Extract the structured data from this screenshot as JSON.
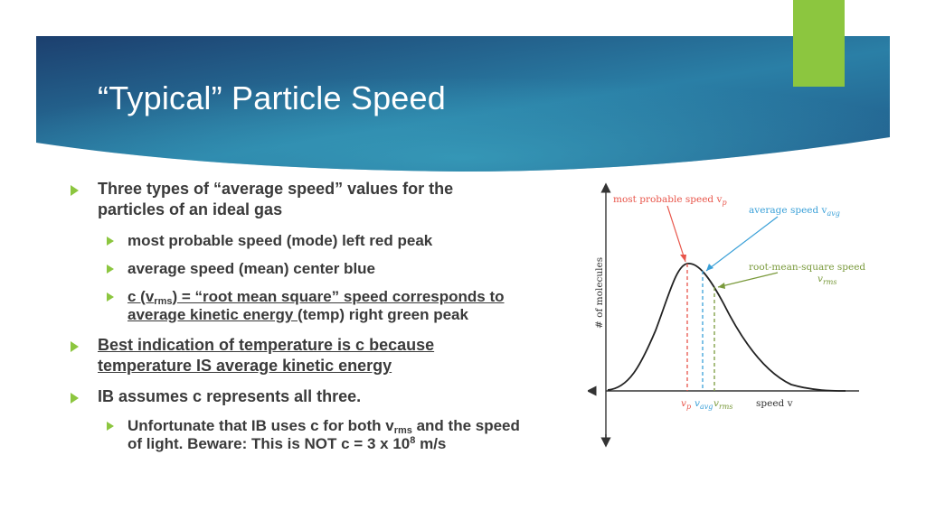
{
  "slide": {
    "title": "“Typical” Particle Speed",
    "colors": {
      "banner_dark": "#1c3f6e",
      "banner_light": "#2f8fb0",
      "accent_green": "#8cc63f",
      "text": "#3a3a3a"
    }
  },
  "bullets": {
    "b1_line1": "Three types of “average speed” values for the",
    "b1_line2": "particles of an ideal gas",
    "b1a": "most probable speed (mode) left red peak",
    "b1b": "average speed (mean) center blue",
    "b1c_pre": "c (v",
    "b1c_sub": "rms",
    "b1c_post": ") = “root mean square” speed corresponds to",
    "b1c_line2_u": "average kinetic energy ",
    "b1c_line2_rest": " (temp) right green peak",
    "b2_line1": "Best indication of temperature is c because",
    "b2_line2": "temperature IS average kinetic energy",
    "b3": "IB assumes c represents all three.",
    "b3a_pre": "Unfortunate that IB uses c for both v",
    "b3a_sub": "rms",
    "b3a_post": " and the speed",
    "b3a_line2_pre": "of light. Beware: This is NOT c = 3 x 10",
    "b3a_sup": "8",
    "b3a_line2_post": " m/s"
  },
  "chart_data": {
    "type": "line",
    "title": "",
    "xlabel": "speed v",
    "ylabel": "# of molecules",
    "annotations": {
      "most_probable": "most probable speed v",
      "most_probable_sub": "p",
      "average": "average speed v",
      "average_sub": "avg",
      "rms": "root-mean-square speed",
      "rms_sym": "v",
      "rms_sub": "rms"
    },
    "tick_labels": {
      "vp": "v",
      "vp_sub": "p",
      "vavg": "v",
      "vavg_sub": "avg",
      "vrms": "v",
      "vrms_sub": "rms"
    },
    "colors": {
      "vp": "#e8554a",
      "vavg": "#3aa0d8",
      "vrms": "#7a9a3c"
    }
  }
}
